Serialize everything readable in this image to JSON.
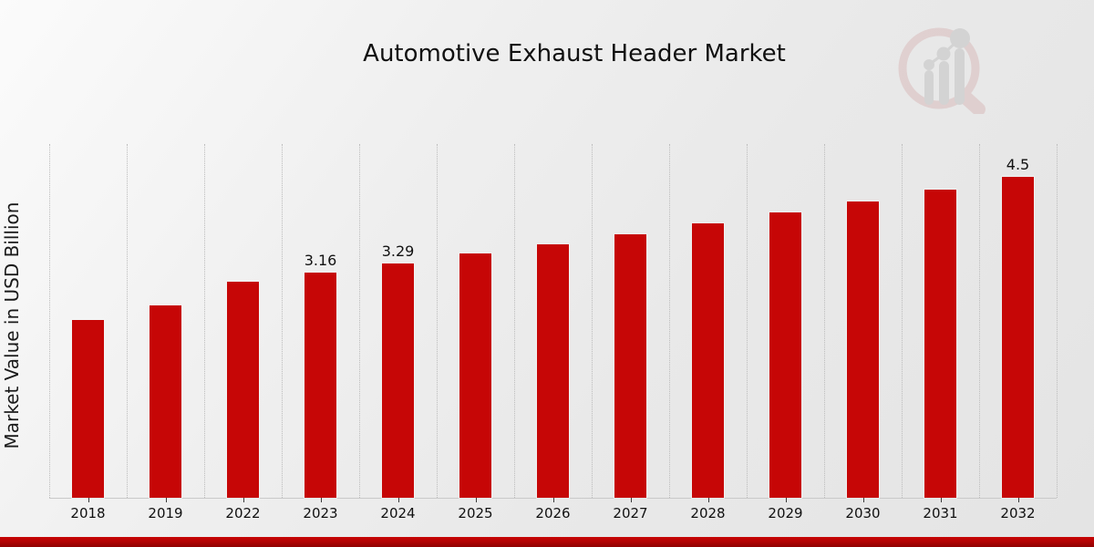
{
  "header": {
    "title": "Automotive Exhaust Header Market"
  },
  "y_axis": {
    "label": "Market Value in USD Billion"
  },
  "chart_data": {
    "type": "bar",
    "title": "Automotive Exhaust Header Market",
    "xlabel": "",
    "ylabel": "Market Value in USD Billion",
    "categories": [
      "2018",
      "2019",
      "2022",
      "2023",
      "2024",
      "2025",
      "2026",
      "2027",
      "2028",
      "2029",
      "2030",
      "2031",
      "2032"
    ],
    "values": [
      2.49,
      2.7,
      3.03,
      3.16,
      3.29,
      3.42,
      3.55,
      3.7,
      3.85,
      4.0,
      4.16,
      4.32,
      4.5
    ],
    "data_labels": [
      "",
      "",
      "",
      "3.16",
      "3.29",
      "",
      "",
      "",
      "",
      "",
      "",
      "",
      "4.5"
    ],
    "unit": "USD Billion",
    "ylim": [
      0,
      4.96
    ],
    "grid": "vertical-dotted",
    "legend_position": "none",
    "bar_color": "#c60606",
    "gridline_color": "#bdbdbd",
    "label_color": "#111111"
  },
  "footer": {
    "accent_color": "#b30404"
  },
  "logo": {
    "name": "magnifier-bar-chart-logo",
    "ring_color": "#c98f8f",
    "bars_color": "#a8a8a8"
  }
}
